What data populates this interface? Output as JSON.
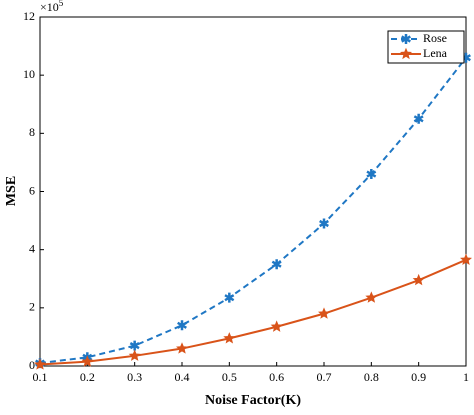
{
  "chart_data": {
    "type": "line",
    "xlabel": "Noise Factor(K)",
    "ylabel": "MSE",
    "y_multiplier": {
      "base": "×10",
      "exponent": "5"
    },
    "x": [
      0.1,
      0.2,
      0.3,
      0.4,
      0.5,
      0.6,
      0.7,
      0.8,
      0.9,
      1
    ],
    "series": [
      {
        "name": "Rose",
        "color": "#1f77c4",
        "dashed": true,
        "marker": "asterisk",
        "values": [
          0.1,
          0.3,
          0.7,
          1.4,
          2.35,
          3.5,
          4.9,
          6.6,
          8.5,
          10.6
        ]
      },
      {
        "name": "Lena",
        "color": "#d95319",
        "dashed": false,
        "marker": "star",
        "values": [
          0.05,
          0.15,
          0.35,
          0.6,
          0.95,
          1.35,
          1.8,
          2.35,
          2.95,
          3.65
        ]
      }
    ],
    "xlim": [
      0.1,
      1
    ],
    "xticks": [
      0.1,
      0.2,
      0.3,
      0.4,
      0.5,
      0.6,
      0.7,
      0.8,
      0.9,
      1
    ],
    "ylim": [
      0,
      12
    ],
    "yticks": [
      0,
      2,
      4,
      6,
      8,
      10,
      12
    ],
    "legend": "upper right",
    "grid": false
  }
}
